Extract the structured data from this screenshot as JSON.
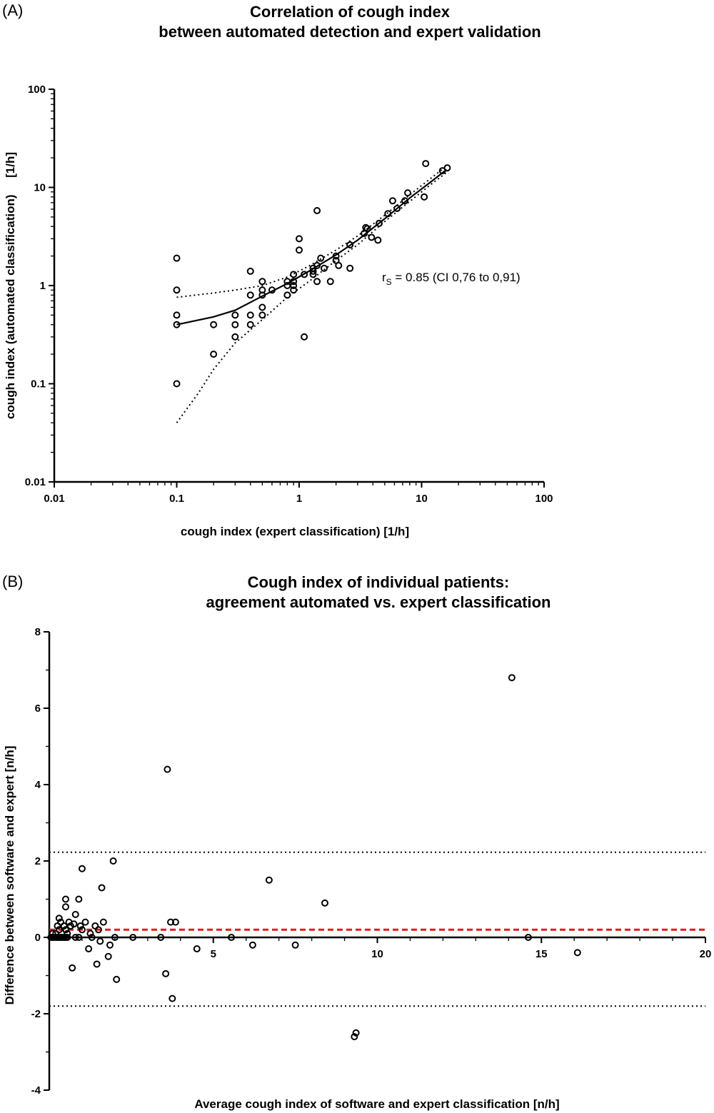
{
  "chart_data": [
    {
      "type": "scatter",
      "panel_label": "(A)",
      "title": "Correlation of cough index",
      "subtitle": "between automated detection and expert validation",
      "xlabel": "cough index (expert classification)  [1/h]",
      "ylabel": "cough index (automated classification)     [1/h]",
      "xscale": "log",
      "yscale": "log",
      "xlim": [
        0.01,
        100
      ],
      "ylim": [
        0.01,
        100
      ],
      "xticks": [
        "0.01",
        "0.1",
        "1",
        "10",
        "100"
      ],
      "yticks": [
        "0.01",
        "0.1",
        "1",
        "10",
        "100"
      ],
      "grid": false,
      "annotation": {
        "prefix": "r",
        "sub": "S",
        "text": " = 0.85 (CI 0,76 to 0,91)"
      },
      "points": [
        [
          0.1,
          1.9
        ],
        [
          0.1,
          0.9
        ],
        [
          0.1,
          0.5
        ],
        [
          0.1,
          0.4
        ],
        [
          0.1,
          0.1
        ],
        [
          0.2,
          0.4
        ],
        [
          0.2,
          0.2
        ],
        [
          0.3,
          0.5
        ],
        [
          0.3,
          0.4
        ],
        [
          0.3,
          0.3
        ],
        [
          0.4,
          1.4
        ],
        [
          0.4,
          0.8
        ],
        [
          0.4,
          0.5
        ],
        [
          0.4,
          0.4
        ],
        [
          0.5,
          1.1
        ],
        [
          0.5,
          0.9
        ],
        [
          0.5,
          0.8
        ],
        [
          0.5,
          0.6
        ],
        [
          0.5,
          0.5
        ],
        [
          0.6,
          0.9
        ],
        [
          0.8,
          1.1
        ],
        [
          0.8,
          1.0
        ],
        [
          0.8,
          0.8
        ],
        [
          0.9,
          1.3
        ],
        [
          0.9,
          1.1
        ],
        [
          0.9,
          1.0
        ],
        [
          0.9,
          0.9
        ],
        [
          1.0,
          3.0
        ],
        [
          1.0,
          2.3
        ],
        [
          1.1,
          0.3
        ],
        [
          1.1,
          1.3
        ],
        [
          1.3,
          1.5
        ],
        [
          1.3,
          1.4
        ],
        [
          1.3,
          1.3
        ],
        [
          1.4,
          1.6
        ],
        [
          1.4,
          1.1
        ],
        [
          1.4,
          5.8
        ],
        [
          1.5,
          1.9
        ],
        [
          1.6,
          1.5
        ],
        [
          1.8,
          1.1
        ],
        [
          2.0,
          2.0
        ],
        [
          2.0,
          1.8
        ],
        [
          2.1,
          1.6
        ],
        [
          2.6,
          2.6
        ],
        [
          2.6,
          1.5
        ],
        [
          3.4,
          3.4
        ],
        [
          3.5,
          3.9
        ],
        [
          3.6,
          3.8
        ],
        [
          3.9,
          3.1
        ],
        [
          4.4,
          2.9
        ],
        [
          4.5,
          4.3
        ],
        [
          5.3,
          5.4
        ],
        [
          5.8,
          7.3
        ],
        [
          6.3,
          6.1
        ],
        [
          7.3,
          7.3
        ],
        [
          7.7,
          8.8
        ],
        [
          10.5,
          8.0
        ],
        [
          10.8,
          17.5
        ],
        [
          14.8,
          14.8
        ],
        [
          16.2,
          15.8
        ]
      ],
      "fit": [
        [
          0.1,
          0.4
        ],
        [
          0.2,
          0.48
        ],
        [
          0.3,
          0.56
        ],
        [
          0.5,
          0.78
        ],
        [
          0.8,
          1.05
        ],
        [
          1.2,
          1.4
        ],
        [
          2.0,
          2.05
        ],
        [
          3.0,
          2.9
        ],
        [
          5.0,
          4.8
        ],
        [
          8.0,
          7.8
        ],
        [
          12.0,
          11.5
        ],
        [
          16.0,
          15.2
        ]
      ],
      "ci_upper": [
        [
          0.1,
          0.76
        ],
        [
          0.2,
          0.84
        ],
        [
          0.3,
          0.9
        ],
        [
          0.5,
          1.0
        ],
        [
          0.8,
          1.22
        ],
        [
          1.2,
          1.58
        ],
        [
          2.0,
          2.3
        ],
        [
          3.0,
          3.2
        ],
        [
          5.0,
          5.2
        ],
        [
          8.0,
          8.4
        ],
        [
          12.0,
          12.5
        ],
        [
          16.0,
          16.5
        ]
      ],
      "ci_lower": [
        [
          0.1,
          0.04
        ],
        [
          0.15,
          0.08
        ],
        [
          0.2,
          0.14
        ],
        [
          0.3,
          0.26
        ],
        [
          0.5,
          0.45
        ],
        [
          0.8,
          0.76
        ],
        [
          1.2,
          1.1
        ],
        [
          2.0,
          1.8
        ],
        [
          3.0,
          2.6
        ],
        [
          5.0,
          4.5
        ],
        [
          8.0,
          7.2
        ],
        [
          12.0,
          10.8
        ],
        [
          16.0,
          14.2
        ]
      ]
    },
    {
      "type": "scatter",
      "panel_label": "(B)",
      "title": "Cough index of individual patients:",
      "subtitle": "agreement automated vs. expert classification",
      "xlabel": "Average cough index of software and expert classification [n/h]",
      "ylabel": "Difference between software and expert [n/h]",
      "xlim": [
        0,
        20
      ],
      "ylim": [
        -4,
        8
      ],
      "xticks": [
        "5",
        "10",
        "15",
        "20"
      ],
      "yticks": [
        "-4",
        "-2",
        "0",
        "2",
        "4",
        "6",
        "8"
      ],
      "grid": false,
      "mean_line": {
        "value": 0.2,
        "color": "#e01b1b"
      },
      "limits_of_agreement": [
        2.23,
        -1.8
      ],
      "points": [
        [
          0.05,
          0
        ],
        [
          0.1,
          0
        ],
        [
          0.15,
          0
        ],
        [
          0.2,
          0
        ],
        [
          0.25,
          0
        ],
        [
          0.3,
          0
        ],
        [
          0.35,
          0
        ],
        [
          0.4,
          0
        ],
        [
          0.45,
          0
        ],
        [
          0.5,
          0
        ],
        [
          0.55,
          0
        ],
        [
          0.1,
          0.1
        ],
        [
          0.2,
          0.1
        ],
        [
          0.3,
          0.2
        ],
        [
          0.25,
          0.3
        ],
        [
          0.35,
          0.4
        ],
        [
          0.3,
          0.5
        ],
        [
          0.45,
          0.3
        ],
        [
          0.5,
          0.2
        ],
        [
          0.55,
          0.1
        ],
        [
          0.5,
          0.8
        ],
        [
          0.5,
          1.0
        ],
        [
          0.6,
          0.4
        ],
        [
          0.65,
          0.3
        ],
        [
          0.7,
          -0.8
        ],
        [
          0.75,
          0.35
        ],
        [
          0.8,
          0
        ],
        [
          0.8,
          0.6
        ],
        [
          0.9,
          1.0
        ],
        [
          0.9,
          0
        ],
        [
          0.95,
          0.3
        ],
        [
          1.0,
          0.2
        ],
        [
          1.0,
          1.8
        ],
        [
          1.1,
          0.4
        ],
        [
          1.2,
          -0.3
        ],
        [
          1.25,
          0.1
        ],
        [
          1.3,
          0
        ],
        [
          1.4,
          0.3
        ],
        [
          1.45,
          -0.7
        ],
        [
          1.5,
          0.2
        ],
        [
          1.55,
          -0.1
        ],
        [
          1.6,
          1.3
        ],
        [
          1.65,
          0.4
        ],
        [
          1.8,
          -0.5
        ],
        [
          1.85,
          -0.2
        ],
        [
          1.95,
          2.0
        ],
        [
          2.0,
          0
        ],
        [
          2.05,
          -1.1
        ],
        [
          2.55,
          0
        ],
        [
          3.4,
          0
        ],
        [
          3.55,
          -0.95
        ],
        [
          3.6,
          4.4
        ],
        [
          3.7,
          0.4
        ],
        [
          3.75,
          -1.6
        ],
        [
          3.85,
          0.4
        ],
        [
          4.5,
          -0.3
        ],
        [
          5.55,
          0
        ],
        [
          6.2,
          -0.2
        ],
        [
          6.7,
          1.5
        ],
        [
          7.5,
          -0.2
        ],
        [
          8.4,
          0.9
        ],
        [
          9.3,
          -2.6
        ],
        [
          9.35,
          -2.5
        ],
        [
          14.1,
          6.8
        ],
        [
          14.6,
          0
        ],
        [
          16.1,
          -0.4
        ]
      ]
    }
  ]
}
